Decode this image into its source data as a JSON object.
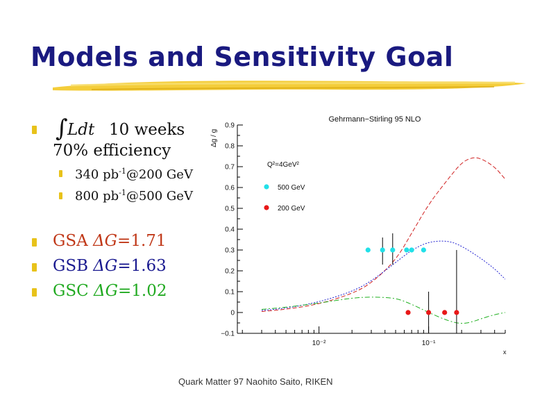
{
  "slide": {
    "title": "Models and Sensitivity Goal",
    "integral_symbol": "∫",
    "luminosity_symbol": "Ldt",
    "duration": "10 weeks",
    "efficiency": "70% efficiency",
    "lum_items": [
      {
        "value": "340 pb",
        "exp": "-1",
        "rest": "@200 GeV"
      },
      {
        "value": "800 pb",
        "exp": "-1",
        "rest": "@500 GeV"
      }
    ],
    "models": [
      {
        "name": "GSA",
        "delta": "ΔG",
        "value": "=1.71",
        "color": "#c03818"
      },
      {
        "name": "GSB",
        "delta": "ΔG",
        "value": "=1.63",
        "color": "#1a1a90"
      },
      {
        "name": "GSC",
        "delta": "ΔG",
        "value": "=1.02",
        "color": "#22aa22"
      }
    ],
    "footer": "Quark Matter 97  Naohito Saito, RIKEN",
    "bullet_color": "#e8c21a"
  },
  "chart_data": {
    "type": "line",
    "title": "Gehrmann−Stirling 95 NLO",
    "ylabel": "Δg / g",
    "xlabel": "x",
    "annotation": "Q²=4GeV²",
    "x_scale": "log",
    "xlim": [
      0.0018,
      0.5
    ],
    "ylim": [
      -0.1,
      0.9
    ],
    "yticks": [
      -0.1,
      0,
      0.1,
      0.2,
      0.3,
      0.4,
      0.5,
      0.6,
      0.7,
      0.8,
      0.9
    ],
    "ytick_labels": [
      "−0.1",
      "0",
      "0.1",
      "0.2",
      "0.3",
      "0.4",
      "0.5",
      "0.6",
      "0.7",
      "0.8",
      "0.9"
    ],
    "xtick_major": [
      0.01,
      0.1
    ],
    "xtick_labels": [
      "10⁻²",
      "10⁻¹"
    ],
    "legend": [
      {
        "label": "500 GeV",
        "color": "#22e0e8"
      },
      {
        "label": "200 GeV",
        "color": "#e81818"
      }
    ],
    "series": [
      {
        "style": "dashed",
        "color": "#d02020",
        "x": [
          0.003,
          0.005,
          0.01,
          0.02,
          0.03,
          0.05,
          0.07,
          0.1,
          0.15,
          0.2,
          0.25,
          0.3,
          0.4,
          0.5
        ],
        "y": [
          0.005,
          0.015,
          0.04,
          0.09,
          0.14,
          0.25,
          0.38,
          0.52,
          0.64,
          0.72,
          0.745,
          0.74,
          0.7,
          0.64
        ]
      },
      {
        "style": "dotted",
        "color": "#2020d0",
        "x": [
          0.003,
          0.005,
          0.01,
          0.02,
          0.03,
          0.05,
          0.07,
          0.1,
          0.15,
          0.2,
          0.3,
          0.4,
          0.5
        ],
        "y": [
          0.01,
          0.02,
          0.05,
          0.1,
          0.15,
          0.24,
          0.3,
          0.34,
          0.345,
          0.32,
          0.26,
          0.21,
          0.16
        ]
      },
      {
        "style": "dashdot",
        "color": "#20b020",
        "x": [
          0.003,
          0.005,
          0.01,
          0.02,
          0.03,
          0.05,
          0.07,
          0.1,
          0.15,
          0.2,
          0.25,
          0.3,
          0.4,
          0.5
        ],
        "y": [
          0.015,
          0.025,
          0.045,
          0.07,
          0.075,
          0.07,
          0.04,
          0.0,
          -0.04,
          -0.055,
          -0.045,
          -0.03,
          -0.01,
          0.0
        ]
      }
    ],
    "points": [
      {
        "set": "500 GeV",
        "x": 0.028,
        "y": 0.3,
        "err_lo": 0.0,
        "err_hi": 0.0
      },
      {
        "set": "500 GeV",
        "x": 0.038,
        "y": 0.3,
        "err_lo": 0.07,
        "err_hi": 0.06
      },
      {
        "set": "500 GeV",
        "x": 0.047,
        "y": 0.3,
        "err_lo": 0.07,
        "err_hi": 0.08
      },
      {
        "set": "500 GeV",
        "x": 0.063,
        "y": 0.3,
        "err_lo": 0.0,
        "err_hi": 0.0
      },
      {
        "set": "500 GeV",
        "x": 0.07,
        "y": 0.3,
        "err_lo": 0.0,
        "err_hi": 0.0
      },
      {
        "set": "500 GeV",
        "x": 0.09,
        "y": 0.3,
        "err_lo": 0.0,
        "err_hi": 0.0
      },
      {
        "set": "200 GeV",
        "x": 0.065,
        "y": 0.0,
        "err_lo": 0.0,
        "err_hi": 0.0
      },
      {
        "set": "200 GeV",
        "x": 0.1,
        "y": 0.0,
        "err_lo": 0.1,
        "err_hi": 0.1
      },
      {
        "set": "200 GeV",
        "x": 0.14,
        "y": 0.0,
        "err_lo": 0.0,
        "err_hi": 0.0
      },
      {
        "set": "200 GeV",
        "x": 0.18,
        "y": 0.0,
        "err_lo": 0.1,
        "err_hi": 0.3
      }
    ]
  }
}
